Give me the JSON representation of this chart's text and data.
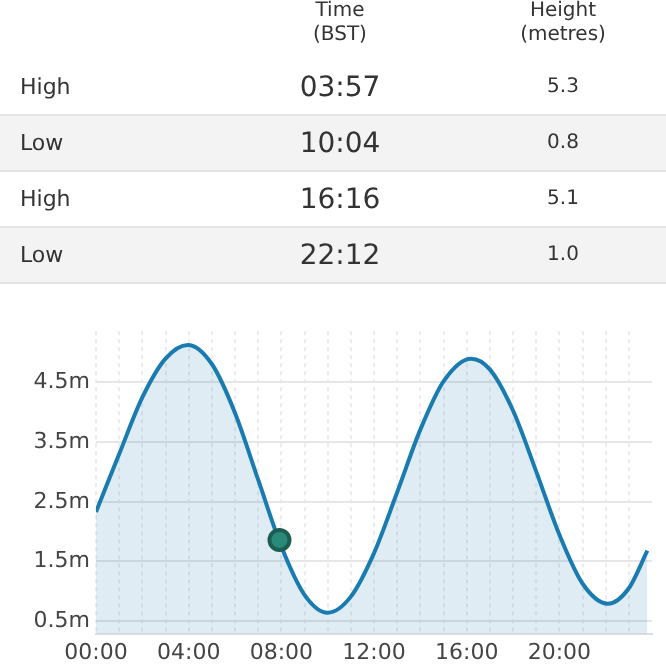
{
  "chart_data": {
    "type": "area",
    "annotations": [
      "Time\n(BST)",
      "Height\n(metres)",
      "High",
      "03:57",
      "5.3",
      "Low",
      "10:04",
      "0.8",
      "High",
      "16:16",
      "5.1",
      "Low",
      "22:12",
      "1.0"
    ],
    "series": [
      {
        "color": "#1a7bb0",
        "marker": "none",
        "x": [
          0,
          1,
          2,
          3,
          3.97,
          5,
          6,
          7,
          8,
          9,
          10,
          11,
          12,
          13,
          14,
          15,
          16.2,
          17,
          18,
          19,
          20,
          21,
          22.1,
          23,
          23.8
        ],
        "values": [
          2.33,
          3.3,
          4.25,
          4.9,
          5.13,
          4.81,
          3.99,
          2.87,
          1.75,
          0.94,
          0.64,
          0.91,
          1.64,
          2.66,
          3.71,
          4.52,
          4.9,
          4.72,
          4.03,
          3.01,
          1.95,
          1.13,
          0.79,
          1.05,
          1.68
        ]
      },
      {
        "type": "scatter",
        "marker": "circle",
        "color": "#2a8a7a",
        "x": [
          7.92
        ],
        "values": [
          1.86
        ]
      }
    ],
    "xlim": [
      0,
      24
    ],
    "xticks": [
      {
        "value": 0,
        "label": "00:00"
      },
      {
        "value": 1,
        "label": null
      },
      {
        "value": 2,
        "label": null
      },
      {
        "value": 3,
        "label": null
      },
      {
        "value": 4,
        "label": "04:00"
      },
      {
        "value": 5,
        "label": null
      },
      {
        "value": 6,
        "label": null
      },
      {
        "value": 7,
        "label": null
      },
      {
        "value": 8,
        "label": "08:00"
      },
      {
        "value": 9,
        "label": null
      },
      {
        "value": 10,
        "label": null
      },
      {
        "value": 11,
        "label": null
      },
      {
        "value": 12,
        "label": "12:00"
      },
      {
        "value": 13,
        "label": null
      },
      {
        "value": 14,
        "label": null
      },
      {
        "value": 15,
        "label": null
      },
      {
        "value": 16,
        "label": "16:00"
      },
      {
        "value": 17,
        "label": null
      },
      {
        "value": 18,
        "label": null
      },
      {
        "value": 19,
        "label": null
      },
      {
        "value": 20,
        "label": "20:00"
      },
      {
        "value": 21,
        "label": null
      },
      {
        "value": 22,
        "label": null
      },
      {
        "value": 23,
        "label": null
      }
    ],
    "ylim": [
      0.29,
      5.36
    ],
    "yticks": [
      {
        "value": 0.5,
        "label": "0.5m"
      },
      {
        "value": 1.5,
        "label": "1.5m"
      },
      {
        "value": 2.5,
        "label": "2.5m"
      },
      {
        "value": 3.5,
        "label": "3.5m"
      },
      {
        "value": 4.5,
        "label": "4.5m"
      }
    ],
    "grid": true,
    "legend": false
  }
}
